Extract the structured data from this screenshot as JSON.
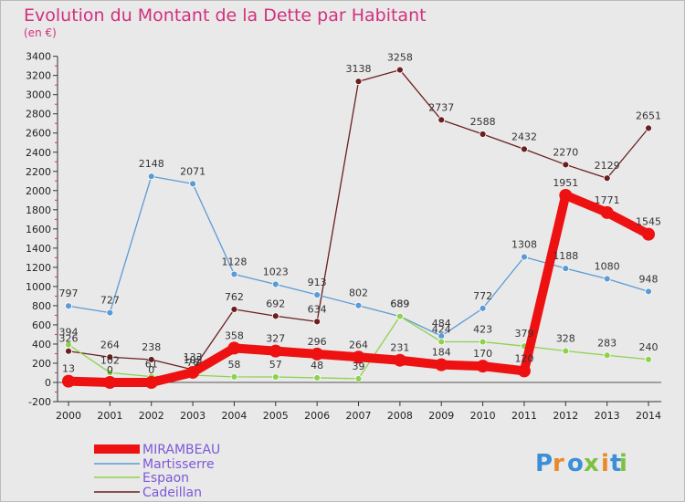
{
  "header": {
    "title": "Evolution du Montant de la Dette par Habitant",
    "subtitle": "(en €)"
  },
  "brand": {
    "letters": [
      "P",
      "r",
      "o",
      "x",
      "i",
      "t",
      "i"
    ],
    "colors": [
      "#3a8fd6",
      "#e8892a",
      "#3a8fd6",
      "#7cc142",
      "#e8892a",
      "#3a8fd6",
      "#7cc142"
    ]
  },
  "chart_data": {
    "type": "line",
    "categories": [
      "2000",
      "2001",
      "2002",
      "2003",
      "2004",
      "2005",
      "2006",
      "2007",
      "2008",
      "2009",
      "2010",
      "2011",
      "2012",
      "2013",
      "2014"
    ],
    "title": "Evolution du Montant de la Dette par Habitant",
    "subtitle": "(en €)",
    "ylim": [
      -200,
      3400
    ],
    "yticks": [
      -200,
      0,
      200,
      400,
      600,
      800,
      1000,
      1200,
      1400,
      1600,
      1800,
      2000,
      2200,
      2400,
      2600,
      2800,
      3000,
      3200,
      3400
    ],
    "grid": false,
    "legend_placement": "bottom-left",
    "series": [
      {
        "name": "MIRAMBEAU",
        "color": "#ee1111",
        "values": [
          13,
          0,
          0,
          105,
          358,
          327,
          296,
          264,
          231,
          184,
          170,
          120,
          1951,
          1771,
          1545
        ]
      },
      {
        "name": "Martisserre",
        "color": "#5b9bd5",
        "values": [
          797,
          727,
          2148,
          2071,
          1128,
          1023,
          913,
          802,
          689,
          484,
          772,
          1308,
          1188,
          1080,
          948
        ]
      },
      {
        "name": "Espaon",
        "color": "#8fd14f",
        "values": [
          394,
          102,
          61,
          76,
          58,
          57,
          48,
          39,
          689,
          424,
          423,
          379,
          328,
          283,
          240
        ]
      },
      {
        "name": "Cadeillan",
        "color": "#6b1f1f",
        "values": [
          326,
          264,
          238,
          133,
          762,
          692,
          634,
          3138,
          3258,
          2737,
          2588,
          2432,
          2270,
          2129,
          2651
        ]
      }
    ],
    "labels": {
      "MIRAMBEAU": [
        "13",
        "0",
        "0",
        "105",
        "358",
        "327",
        "296",
        "264",
        "231",
        "184",
        "170",
        "120",
        "1951",
        "1771",
        "1545"
      ],
      "Martisserre": [
        "797",
        "727",
        "2148",
        "2071",
        "1128",
        "1023",
        "913",
        "802",
        "689",
        "484",
        "772",
        "1308",
        "1188",
        "1080",
        "948"
      ],
      "Espaon": [
        "394",
        "102",
        "61",
        "76",
        "58",
        "57",
        "48",
        "39",
        "689",
        "424",
        "423",
        "379",
        "328",
        "283",
        "240"
      ],
      "Cadeillan": [
        "326",
        "264",
        "238",
        "133",
        "762",
        "692",
        "634",
        "3138",
        "3258",
        "2737",
        "2588",
        "2432",
        "2270",
        "2129",
        "2651"
      ]
    }
  }
}
